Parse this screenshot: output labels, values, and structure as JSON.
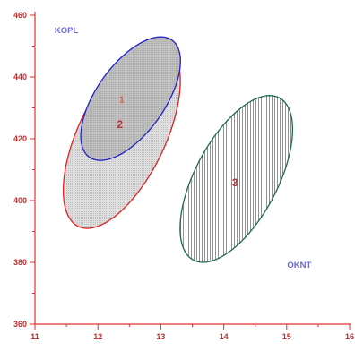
{
  "chart_data": {
    "type": "scatter",
    "title": "",
    "xlabel": "",
    "ylabel": "",
    "xlim": [
      11,
      16
    ],
    "ylim": [
      360,
      460
    ],
    "x_ticks": [
      11,
      12,
      13,
      14,
      15,
      16
    ],
    "y_ticks": [
      380,
      400,
      420,
      440,
      460
    ],
    "x_tick_labels": [
      "11",
      "12",
      "13",
      "14",
      "15",
      "16"
    ],
    "y_tick_labels": [
      "380",
      "400",
      "420",
      "440",
      "460"
    ],
    "axis_origin_label": "360",
    "grid": false,
    "annotations": [
      {
        "text": "KOPL",
        "x": 11.5,
        "y": 455,
        "color": "#6a6ad0"
      },
      {
        "text": "OKNT",
        "x": 15.2,
        "y": 379,
        "color": "#6a6ad0"
      }
    ],
    "ellipses": [
      {
        "label": "2",
        "center_x": 12.38,
        "center_y": 421,
        "x_semi_axis": 0.75,
        "y_semi_axis": 30,
        "x_tilt": 0.55,
        "stroke": "#e02020",
        "fill": "#dedede",
        "pattern": "fine-dots",
        "label_x": 12.35,
        "label_y": 424.4,
        "label_color": "#c03030"
      },
      {
        "label": "1",
        "center_x": 12.52,
        "center_y": 433,
        "x_semi_axis": 0.63,
        "y_semi_axis": 20,
        "x_tilt": 0.48,
        "stroke": "#2020cc",
        "fill": "#bfbfbf",
        "pattern": "fine-dots",
        "label_x": 12.38,
        "label_y": 432.5,
        "label_color": "#e03030"
      },
      {
        "label": "3",
        "center_x": 14.2,
        "center_y": 407,
        "x_semi_axis": 0.72,
        "y_semi_axis": 27,
        "x_tilt": 0.53,
        "stroke": "#1f6b4a",
        "fill": "#ffffff",
        "pattern": "vertical-lines",
        "label_x": 14.18,
        "label_y": 405.5,
        "label_color": "#c03030"
      }
    ],
    "axis_color": "#e03030",
    "tick_label_color": "#c03030"
  }
}
